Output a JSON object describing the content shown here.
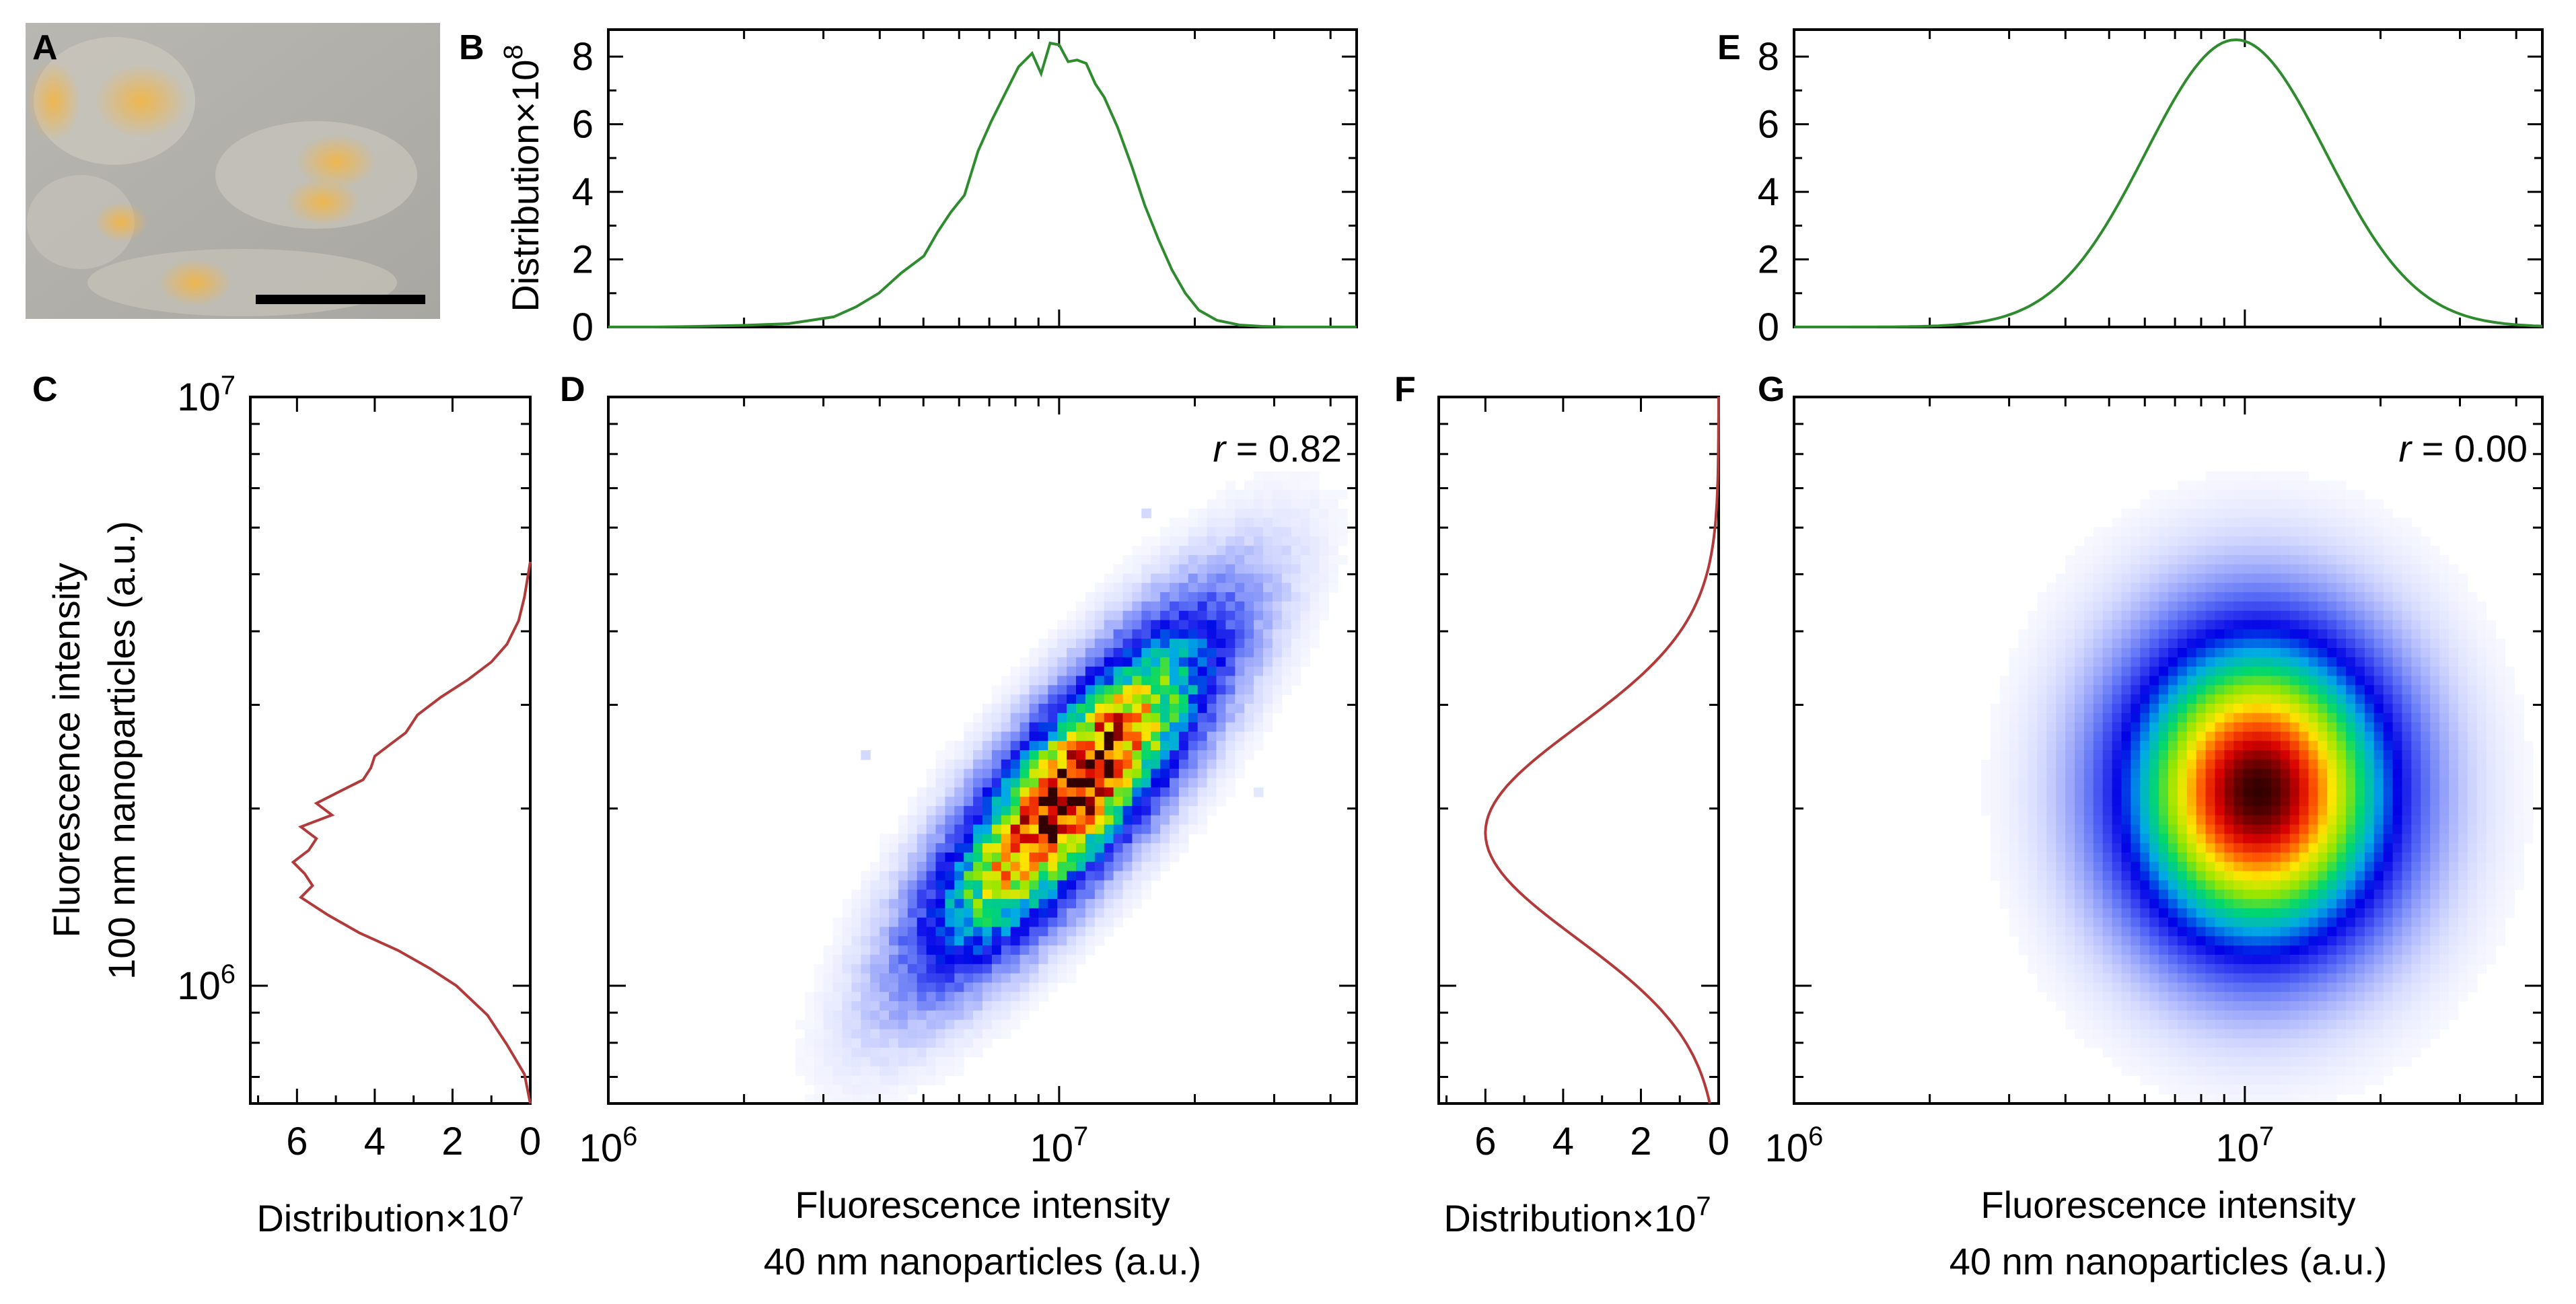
{
  "panel_labels": {
    "A": "A",
    "B": "B",
    "C": "C",
    "D": "D",
    "E": "E",
    "F": "F",
    "G": "G"
  },
  "colors": {
    "green": "#2e8b2e",
    "red": "#b23a3a"
  },
  "image_panel": {
    "content": "cell micrograph"
  },
  "chart_data": [
    {
      "id": "B",
      "type": "line",
      "series_color": "green",
      "title": "",
      "ylabel_prefix": "Distribution×10",
      "ylabel_exp": "8",
      "ylim": [
        0,
        8.8
      ],
      "xlim": [
        6.0,
        7.66
      ],
      "x_scale": "log10",
      "yticks": [
        "0",
        "2",
        "4",
        "6",
        "8"
      ],
      "x": [
        6.0,
        6.1,
        6.2,
        6.3,
        6.4,
        6.5,
        6.55,
        6.6,
        6.65,
        6.7,
        6.73,
        6.76,
        6.79,
        6.82,
        6.85,
        6.88,
        6.91,
        6.94,
        6.96,
        6.98,
        7.0,
        7.02,
        7.04,
        7.06,
        7.08,
        7.1,
        7.13,
        7.16,
        7.19,
        7.22,
        7.25,
        7.28,
        7.31,
        7.35,
        7.4,
        7.45,
        7.5,
        7.55,
        7.6,
        7.66
      ],
      "values": [
        0,
        0,
        0.02,
        0.05,
        0.1,
        0.3,
        0.6,
        1.0,
        1.6,
        2.1,
        2.8,
        3.4,
        3.9,
        5.2,
        6.1,
        6.9,
        7.7,
        8.1,
        7.5,
        8.4,
        8.35,
        7.85,
        7.9,
        7.8,
        7.2,
        6.8,
        5.9,
        4.8,
        3.6,
        2.6,
        1.7,
        1.0,
        0.5,
        0.2,
        0.06,
        0.02,
        0,
        0,
        0,
        0
      ]
    },
    {
      "id": "C",
      "type": "line",
      "orientation": "horizontal",
      "series_color": "red",
      "xlabel_prefix": "Distribution×10",
      "xlabel_exp": "7",
      "xlim": [
        7.2,
        0
      ],
      "ylim": [
        5.8,
        7.0
      ],
      "y_scale": "log10",
      "xticks": [
        "6",
        "4",
        "2",
        "0"
      ],
      "yticks_base": [
        "10",
        "10"
      ],
      "yticks_exp": [
        "7",
        "6"
      ],
      "y": [
        5.8,
        5.85,
        5.9,
        5.95,
        6.0,
        6.03,
        6.06,
        6.09,
        6.12,
        6.15,
        6.17,
        6.19,
        6.21,
        6.23,
        6.25,
        6.27,
        6.29,
        6.31,
        6.33,
        6.35,
        6.37,
        6.39,
        6.41,
        6.43,
        6.46,
        6.49,
        6.52,
        6.55,
        6.58,
        6.62,
        6.66,
        6.7,
        6.72
      ],
      "values": [
        0,
        0.15,
        0.6,
        1.1,
        1.9,
        2.6,
        3.4,
        4.4,
        5.2,
        5.9,
        5.6,
        5.8,
        6.1,
        5.7,
        5.5,
        5.9,
        5.1,
        5.5,
        4.9,
        4.3,
        4.1,
        4.0,
        3.6,
        3.2,
        2.9,
        2.3,
        1.6,
        1.0,
        0.6,
        0.3,
        0.15,
        0.05,
        0
      ]
    },
    {
      "id": "D",
      "type": "heatmap",
      "annotation_prefix": "r",
      "annotation_value": " = 0.82",
      "correlation": 0.82,
      "xlim": [
        6.0,
        7.66
      ],
      "ylim": [
        5.8,
        7.0
      ],
      "x_scale": "log10",
      "y_scale": "log10",
      "xticks_base": [
        "10",
        "10"
      ],
      "xticks_exp": [
        "6",
        "7"
      ],
      "xlabel_line1": "Fluorescence intensity",
      "xlabel_line2": "40 nm nanoparticles (a.u.)",
      "ylabel_line1": "Fluorescence intensity",
      "ylabel_line2": "100 nm nanoparticles (a.u.)",
      "center": [
        7.03,
        6.33
      ],
      "sigma_x": 0.2,
      "sigma_y": 0.18,
      "rho": 0.82,
      "noise": true
    },
    {
      "id": "E",
      "type": "line",
      "series_color": "green",
      "ylim": [
        0,
        8.8
      ],
      "xlim": [
        6.0,
        7.66
      ],
      "x_scale": "log10",
      "yticks": [
        "0",
        "2",
        "4",
        "6",
        "8"
      ],
      "gaussian": {
        "mu": 6.98,
        "sigma": 0.2,
        "peak": 8.5
      }
    },
    {
      "id": "F",
      "type": "line",
      "orientation": "horizontal",
      "series_color": "red",
      "xlabel_prefix": "Distribution×10",
      "xlabel_exp": "7",
      "xlim": [
        7.2,
        0
      ],
      "ylim": [
        5.8,
        7.0
      ],
      "y_scale": "log10",
      "xticks": [
        "6",
        "4",
        "2",
        "0"
      ],
      "gaussian": {
        "mu": 6.26,
        "sigma": 0.18,
        "peak": 6.0
      }
    },
    {
      "id": "G",
      "type": "heatmap",
      "annotation_prefix": "r",
      "annotation_value": " = 0.00",
      "correlation": 0.0,
      "xlim": [
        6.0,
        7.66
      ],
      "ylim": [
        5.8,
        7.0
      ],
      "x_scale": "log10",
      "y_scale": "log10",
      "xticks_base": [
        "10",
        "10"
      ],
      "xticks_exp": [
        "6",
        "7"
      ],
      "xlabel_line1": "Fluorescence intensity",
      "xlabel_line2": "40 nm nanoparticles (a.u.)",
      "center": [
        7.03,
        6.33
      ],
      "sigma_x": 0.2,
      "sigma_y": 0.18,
      "rho": 0.0,
      "noise": false
    }
  ]
}
